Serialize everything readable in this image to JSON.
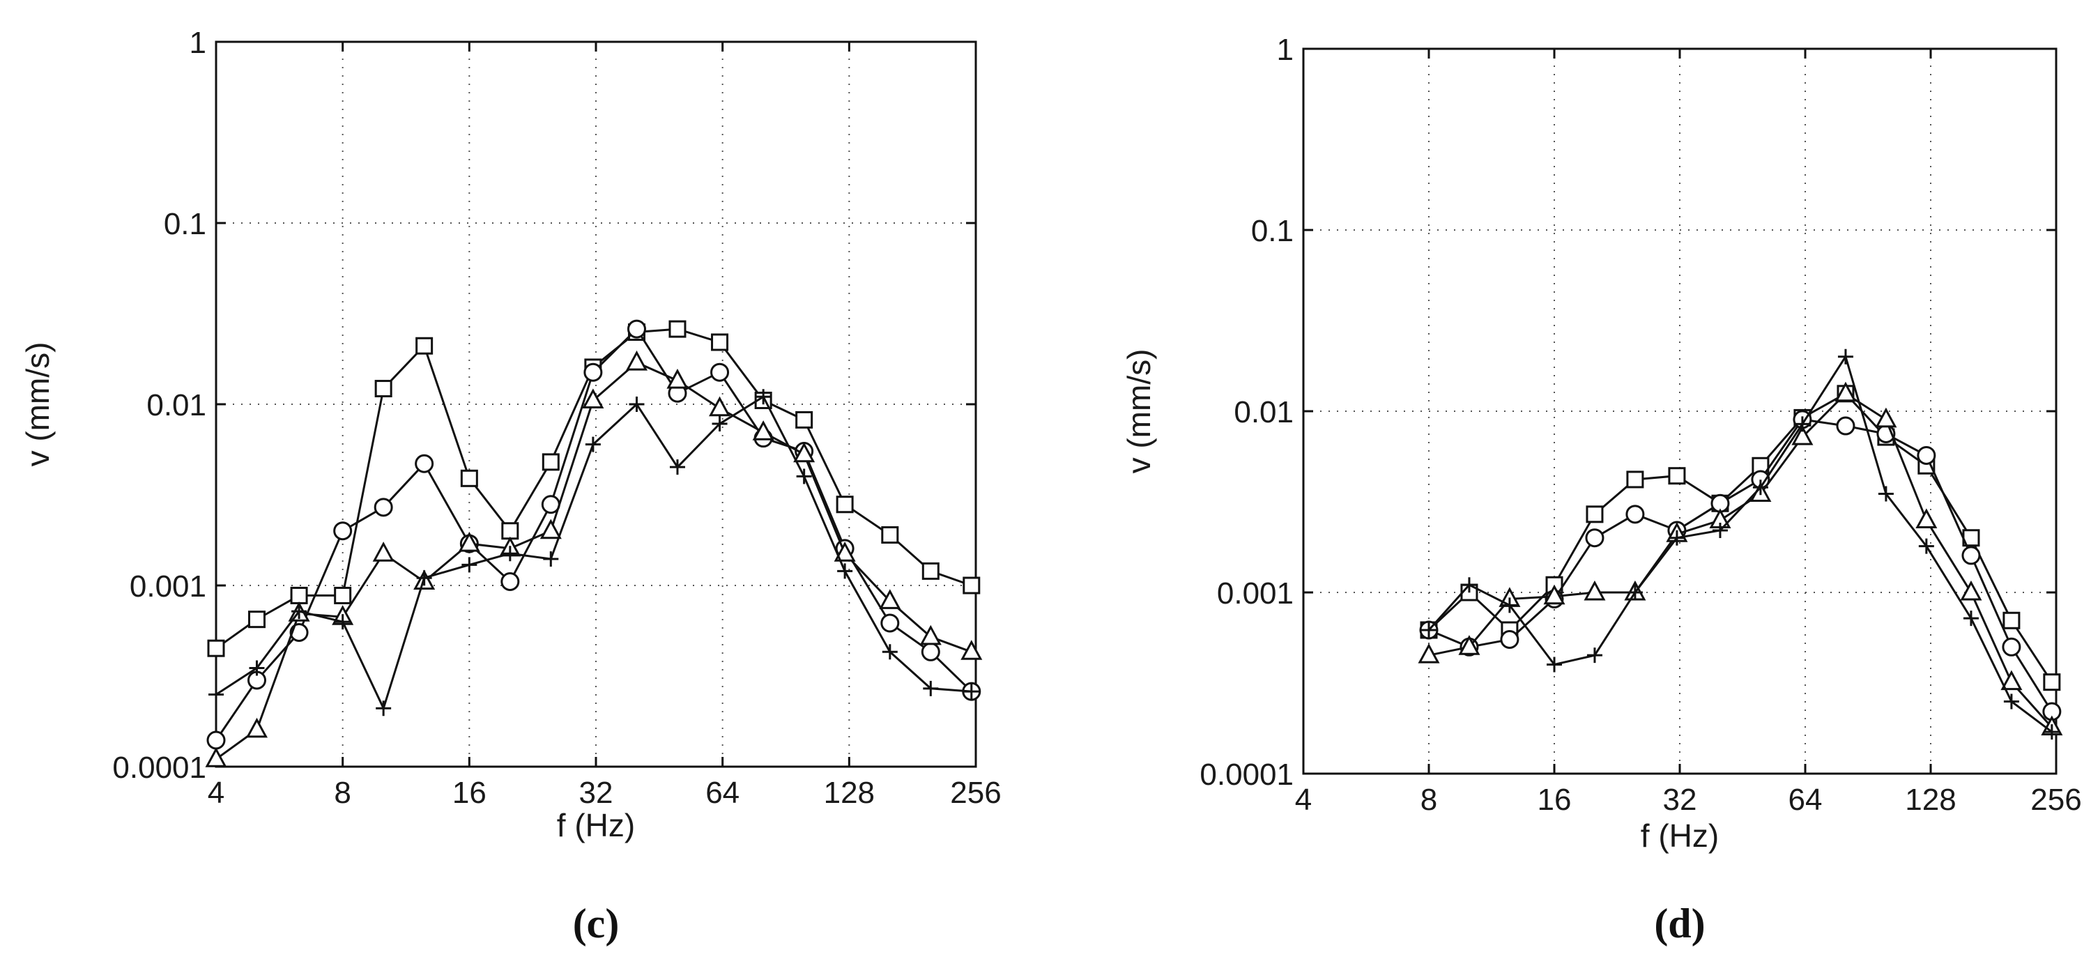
{
  "chart_data": [
    {
      "type": "line",
      "panel_label": "(c)",
      "xscale": "log2",
      "yscale": "log10",
      "xlabel": "f (Hz)",
      "ylabel": "v (mm/s)",
      "xlim": [
        4,
        256
      ],
      "ylim": [
        0.0001,
        1
      ],
      "xticks": [
        4,
        8,
        16,
        32,
        64,
        128,
        256
      ],
      "xtick_labels": [
        "4",
        "8",
        "16",
        "32",
        "64",
        "128",
        "256"
      ],
      "yticks": [
        0.0001,
        0.001,
        0.01,
        0.1,
        1
      ],
      "ytick_labels": [
        "0.0001",
        "0.001",
        "0.01",
        "0.1",
        "1"
      ],
      "grid": true,
      "series": [
        {
          "marker": "square",
          "x": [
            4,
            5,
            6.3,
            8,
            10,
            12.5,
            16,
            20,
            25,
            31.5,
            40,
            50,
            63,
            80,
            100,
            125,
            160,
            200,
            250
          ],
          "values": [
            0.00045,
            0.00065,
            0.00088,
            0.00088,
            0.0122,
            0.021,
            0.0039,
            0.002,
            0.0048,
            0.016,
            0.025,
            0.026,
            0.022,
            0.0105,
            0.0082,
            0.0028,
            0.0019,
            0.0012,
            0.001
          ]
        },
        {
          "marker": "circle",
          "x": [
            4,
            5,
            6.3,
            8,
            10,
            12.5,
            16,
            20,
            25,
            31.5,
            40,
            50,
            63,
            80,
            100,
            125,
            160,
            200,
            250
          ],
          "values": [
            0.00014,
            0.0003,
            0.00055,
            0.002,
            0.0027,
            0.0047,
            0.0017,
            0.00105,
            0.0028,
            0.015,
            0.026,
            0.0115,
            0.015,
            0.0065,
            0.0055,
            0.0016,
            0.00062,
            0.00043,
            0.00026
          ]
        },
        {
          "marker": "triangle",
          "x": [
            4,
            5,
            6.3,
            8,
            10,
            12.5,
            16,
            20,
            25,
            31.5,
            40,
            50,
            63,
            80,
            100,
            125,
            160,
            200,
            250
          ],
          "values": [
            0.00011,
            0.00016,
            0.0007,
            0.00067,
            0.0015,
            0.00105,
            0.0017,
            0.0016,
            0.002,
            0.0105,
            0.017,
            0.0135,
            0.0095,
            0.007,
            0.0053,
            0.0015,
            0.00082,
            0.00052,
            0.00043
          ]
        },
        {
          "marker": "plus",
          "x": [
            4,
            5,
            6.3,
            8,
            10,
            12.5,
            16,
            20,
            25,
            31.5,
            40,
            50,
            63,
            80,
            100,
            125,
            160,
            200,
            250
          ],
          "values": [
            0.00025,
            0.00035,
            0.00072,
            0.00063,
            0.00021,
            0.0011,
            0.0013,
            0.0015,
            0.0014,
            0.006,
            0.01,
            0.0045,
            0.0078,
            0.011,
            0.004,
            0.0012,
            0.00043,
            0.00027,
            0.00026
          ]
        }
      ]
    },
    {
      "type": "line",
      "panel_label": "(d)",
      "xscale": "log2",
      "yscale": "log10",
      "xlabel": "f (Hz)",
      "ylabel": "v (mm/s)",
      "xlim": [
        4,
        256
      ],
      "ylim": [
        0.0001,
        1
      ],
      "xticks": [
        4,
        8,
        16,
        32,
        64,
        128,
        256
      ],
      "xtick_labels": [
        "4",
        "8",
        "16",
        "32",
        "64",
        "128",
        "256"
      ],
      "yticks": [
        0.0001,
        0.001,
        0.01,
        0.1,
        1
      ],
      "ytick_labels": [
        "0.0001",
        "0.001",
        "0.01",
        "0.1",
        "1"
      ],
      "grid": true,
      "series": [
        {
          "marker": "square",
          "x": [
            8,
            10,
            12.5,
            16,
            20,
            25,
            31.5,
            40,
            50,
            63,
            80,
            100,
            125,
            160,
            200,
            250
          ],
          "values": [
            0.00062,
            0.001,
            0.00062,
            0.0011,
            0.0027,
            0.0042,
            0.0044,
            0.0031,
            0.005,
            0.0092,
            0.0125,
            0.0072,
            0.005,
            0.002,
            0.0007,
            0.00032
          ]
        },
        {
          "marker": "circle",
          "x": [
            8,
            10,
            12.5,
            16,
            20,
            25,
            31.5,
            40,
            50,
            63,
            80,
            100,
            125,
            160,
            200,
            250
          ],
          "values": [
            0.00062,
            0.0005,
            0.00055,
            0.00092,
            0.002,
            0.0027,
            0.0022,
            0.0031,
            0.0042,
            0.009,
            0.0083,
            0.0075,
            0.0057,
            0.0016,
            0.0005,
            0.00022
          ]
        },
        {
          "marker": "triangle",
          "x": [
            8,
            10,
            12.5,
            16,
            20,
            25,
            31.5,
            40,
            50,
            63,
            80,
            100,
            125,
            160,
            200,
            250
          ],
          "values": [
            0.00045,
            0.0005,
            0.00092,
            0.00095,
            0.001,
            0.001,
            0.0021,
            0.0025,
            0.0035,
            0.0072,
            0.0125,
            0.009,
            0.0025,
            0.001,
            0.00032,
            0.00018
          ]
        },
        {
          "marker": "plus",
          "x": [
            8,
            10,
            12.5,
            16,
            20,
            25,
            31.5,
            40,
            50,
            63,
            80,
            100,
            125,
            160,
            200,
            250
          ],
          "values": [
            0.00062,
            0.0011,
            0.00085,
            0.0004,
            0.00045,
            0.001,
            0.002,
            0.0022,
            0.0038,
            0.0085,
            0.02,
            0.0035,
            0.0018,
            0.00072,
            0.00025,
            0.00017
          ]
        }
      ]
    }
  ]
}
